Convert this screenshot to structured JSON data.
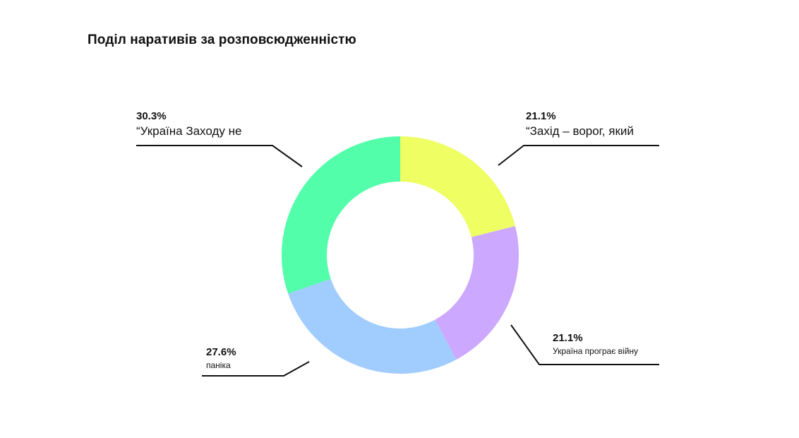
{
  "title": "Поділ наративів за розповсюдженністю",
  "colors": {
    "yellow": "#EEFE63",
    "purple": "#CCA9FE",
    "blue": "#A1CCFE",
    "green": "#52FEA9",
    "leader": "#111111"
  },
  "chart_data": {
    "type": "pie",
    "donut": true,
    "title": "Поділ наративів за розповсюдженністю",
    "start": "12 o'clock, clockwise",
    "slices": [
      {
        "value": 21.1,
        "percent_label": "21.1%",
        "label": "“Захід – ворог, який",
        "color": "#EEFE63"
      },
      {
        "value": 21.1,
        "percent_label": "21.1%",
        "label": "Україна програє війну",
        "color": "#CCA9FE"
      },
      {
        "value": 27.6,
        "percent_label": "27.6%",
        "label": "паніка",
        "color": "#A1CCFE"
      },
      {
        "value": 30.3,
        "percent_label": "30.3%",
        "label": "“Україна Заходу не",
        "color": "#52FEA9"
      }
    ]
  }
}
